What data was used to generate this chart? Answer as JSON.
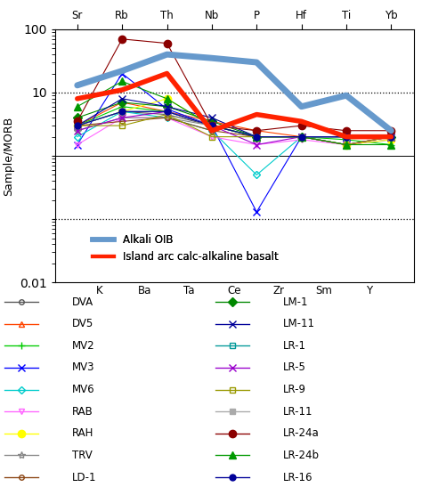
{
  "xlabel_top": [
    "Sr",
    "Rb",
    "Th",
    "Nb",
    "P",
    "Hf",
    "Ti",
    "Yb"
  ],
  "xlabel_bottom": [
    "K",
    "Ba",
    "Ta",
    "Ce",
    "Zr",
    "Sm",
    "Y"
  ],
  "ylabel": "Sample/MORB",
  "ylim": [
    0.01,
    100
  ],
  "alkali_oib": [
    13.0,
    22.0,
    40.0,
    35.0,
    30.0,
    6.0,
    9.0,
    2.5
  ],
  "island_arc": [
    8.0,
    11.0,
    20.0,
    2.5,
    4.5,
    3.5,
    2.0,
    2.0
  ],
  "series": {
    "DVA": {
      "color": "#555555",
      "marker": "o",
      "mfc": "none",
      "ms": 4,
      "lw": 0.8,
      "values": [
        3.0,
        5.0,
        4.5,
        3.0,
        2.0,
        2.0,
        2.0,
        2.0
      ]
    },
    "DV5": {
      "color": "#ff4400",
      "marker": "^",
      "mfc": "none",
      "ms": 5,
      "lw": 0.8,
      "values": [
        3.0,
        7.0,
        5.0,
        3.5,
        2.5,
        2.0,
        2.0,
        2.0
      ]
    },
    "MV2": {
      "color": "#00cc00",
      "marker": "+",
      "mfc": "#00cc00",
      "ms": 6,
      "lw": 0.8,
      "values": [
        3.0,
        6.0,
        5.0,
        3.0,
        2.0,
        2.0,
        1.8,
        1.5
      ]
    },
    "MV3": {
      "color": "#0000ff",
      "marker": "x",
      "mfc": "#0000ff",
      "ms": 6,
      "lw": 0.8,
      "values": [
        1.5,
        20.0,
        5.5,
        3.0,
        0.13,
        2.0,
        2.0,
        2.0
      ]
    },
    "MV6": {
      "color": "#00cccc",
      "marker": "D",
      "mfc": "none",
      "ms": 4,
      "lw": 0.8,
      "values": [
        2.0,
        5.0,
        4.0,
        2.5,
        0.5,
        2.0,
        1.5,
        1.8
      ]
    },
    "RAB": {
      "color": "#ff66ff",
      "marker": "v",
      "mfc": "none",
      "ms": 5,
      "lw": 0.8,
      "values": [
        1.5,
        4.0,
        4.0,
        2.0,
        1.5,
        1.8,
        1.5,
        1.8
      ]
    },
    "RAH": {
      "color": "#ffff00",
      "marker": "o",
      "mfc": "#ffff00",
      "ms": 6,
      "lw": 0.8,
      "values": [
        3.0,
        5.0,
        8.0,
        3.0,
        2.0,
        2.0,
        1.5,
        1.8
      ]
    },
    "TRV": {
      "color": "#888888",
      "marker": "*",
      "mfc": "none",
      "ms": 6,
      "lw": 0.8,
      "values": [
        2.5,
        4.0,
        4.0,
        3.0,
        2.0,
        2.0,
        1.5,
        2.0
      ]
    },
    "LD-1": {
      "color": "#8B4513",
      "marker": "o",
      "mfc": "none",
      "ms": 4,
      "lw": 0.8,
      "values": [
        3.0,
        3.5,
        4.0,
        2.5,
        2.0,
        2.0,
        1.5,
        2.0
      ]
    },
    "LM-1": {
      "color": "#008800",
      "marker": "D",
      "mfc": "#008800",
      "ms": 5,
      "lw": 0.8,
      "values": [
        4.0,
        7.0,
        6.0,
        3.5,
        2.0,
        2.0,
        2.0,
        2.0
      ]
    },
    "LM-11": {
      "color": "#000099",
      "marker": "x",
      "mfc": "#000099",
      "ms": 6,
      "lw": 0.8,
      "values": [
        3.0,
        8.0,
        6.0,
        4.0,
        2.0,
        2.0,
        2.0,
        2.0
      ]
    },
    "LR-1": {
      "color": "#009999",
      "marker": "s",
      "mfc": "none",
      "ms": 5,
      "lw": 0.8,
      "values": [
        3.0,
        5.0,
        5.0,
        3.0,
        2.0,
        2.0,
        2.0,
        2.0
      ]
    },
    "LR-5": {
      "color": "#9900cc",
      "marker": "x",
      "mfc": "#9900cc",
      "ms": 6,
      "lw": 0.8,
      "values": [
        2.5,
        4.0,
        5.0,
        3.0,
        1.5,
        2.0,
        1.5,
        2.0
      ]
    },
    "LR-9": {
      "color": "#999900",
      "marker": "s",
      "mfc": "none",
      "ms": 5,
      "lw": 0.8,
      "values": [
        3.0,
        3.0,
        4.5,
        2.0,
        2.0,
        2.0,
        1.5,
        2.0
      ]
    },
    "LR-11": {
      "color": "#aaaaaa",
      "marker": "s",
      "mfc": "#aaaaaa",
      "ms": 5,
      "lw": 0.8,
      "values": [
        3.0,
        5.0,
        5.0,
        3.0,
        2.0,
        2.0,
        2.0,
        2.0
      ]
    },
    "LR-24a": {
      "color": "#8B0000",
      "marker": "o",
      "mfc": "#8B0000",
      "ms": 6,
      "lw": 0.8,
      "values": [
        3.5,
        70.0,
        60.0,
        3.0,
        2.5,
        3.0,
        2.5,
        2.5
      ]
    },
    "LR-24b": {
      "color": "#009900",
      "marker": "^",
      "mfc": "#009900",
      "ms": 6,
      "lw": 0.8,
      "values": [
        6.0,
        15.0,
        8.0,
        3.0,
        2.0,
        2.0,
        1.5,
        1.5
      ]
    },
    "LR-16": {
      "color": "#000099",
      "marker": "o",
      "mfc": "#000099",
      "ms": 5,
      "lw": 0.8,
      "values": [
        3.0,
        5.0,
        5.0,
        3.0,
        2.0,
        2.0,
        2.0,
        2.0
      ]
    }
  },
  "legend_left": [
    "DVA",
    "DV5",
    "MV2",
    "MV3",
    "MV6",
    "RAB",
    "RAH",
    "TRV",
    "LD-1"
  ],
  "legend_right": [
    "LM-1",
    "LM-11",
    "LR-1",
    "LR-5",
    "LR-9",
    "LR-11",
    "LR-24a",
    "LR-24b",
    "LR-16"
  ],
  "background_color": "#ffffff"
}
